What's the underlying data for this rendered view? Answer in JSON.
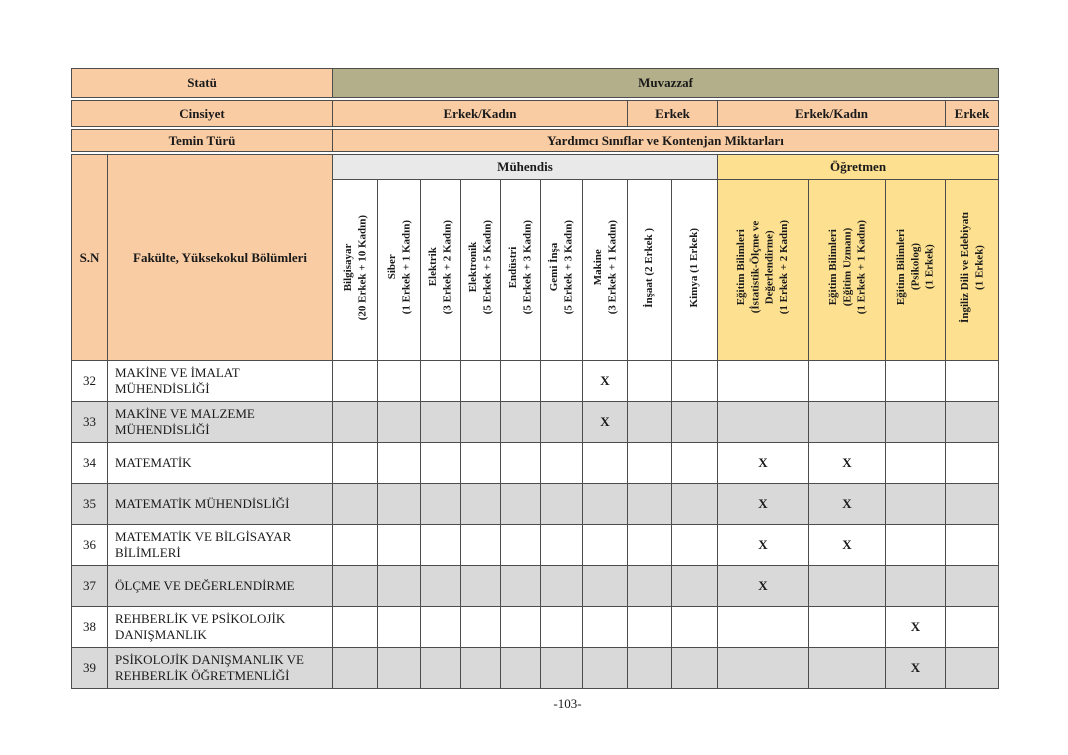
{
  "page": {
    "footer": "-103-"
  },
  "colors": {
    "peach_header": "#f9cca4",
    "olive_header": "#b4af8b",
    "teacher_yellow": "#fde191",
    "engineer_gray": "#e9e9e9",
    "alt_row_gray": "#d9d9d9",
    "border": "#4d4d4d"
  },
  "header_rows": {
    "statu": {
      "label": "Statü",
      "value": "Muvazzaf"
    },
    "cinsiyet": {
      "label": "Cinsiyet",
      "values": [
        "Erkek/Kadın",
        "Erkek",
        "Erkek/Kadın",
        "Erkek"
      ]
    },
    "temin": {
      "label": "Temin Türü",
      "value": "Yardımcı Sınıflar ve Kontenjan Miktarları"
    }
  },
  "table": {
    "sn_header": "S.N",
    "fakulte_header": "Fakülte, Yüksekokul Bölümleri",
    "groups": [
      {
        "label": "Mühendis",
        "span": 9
      },
      {
        "label": "Öğretmen",
        "span": 4
      }
    ],
    "columns": [
      {
        "id": "bilgisayar",
        "group": "muhendis",
        "label": "Bilgisayar\n(20 Erkek + 10 Kadın)"
      },
      {
        "id": "siber",
        "group": "muhendis",
        "label": "Siber\n(1 Erkek + 1 Kadın)"
      },
      {
        "id": "elektrik",
        "group": "muhendis",
        "label": "Elektrik\n(3 Erkek + 2 Kadın)"
      },
      {
        "id": "elektronik",
        "group": "muhendis",
        "label": "Elektronik\n(5 Erkek + 5 Kadın)"
      },
      {
        "id": "endustri",
        "group": "muhendis",
        "label": "Endüstri\n(5 Erkek + 3 Kadın)"
      },
      {
        "id": "gemi-insa",
        "group": "muhendis",
        "label": "Gemi İnşa\n(5 Erkek + 3 Kadın)"
      },
      {
        "id": "makine",
        "group": "muhendis",
        "label": "Makine\n(3 Erkek + 1 Kadın)"
      },
      {
        "id": "insaat",
        "group": "muhendis",
        "label": "İnşaat (2 Erkek )"
      },
      {
        "id": "kimya",
        "group": "muhendis",
        "label": "Kimya (1 Erkek)"
      },
      {
        "id": "eb-istatistik",
        "group": "ogretmen",
        "label": "Eğitim Bilimleri\n(İstatistik-Ölçme ve\nDeğerlendirme)\n(1 Erkek + 2 Kadın)"
      },
      {
        "id": "eb-uzman",
        "group": "ogretmen",
        "label": "Eğitim Bilimleri\n(Eğitim Uzmanı)\n(1 Erkek + 1 Kadın)"
      },
      {
        "id": "eb-psikolog",
        "group": "ogretmen",
        "label": "Eğitim Bilimleri\n(Psikolog)\n(1 Erkek)"
      },
      {
        "id": "ingiliz-dili",
        "group": "ogretmen",
        "label": "İngiliz Dili ve Edebiyatı\n(1 Erkek)"
      }
    ],
    "rows": [
      {
        "sn": "32",
        "name": "MAKİNE VE İMALAT MÜHENDİSLİĞİ",
        "marks": {
          "6": "X"
        }
      },
      {
        "sn": "33",
        "name": "MAKİNE VE MALZEME MÜHENDİSLİĞİ",
        "marks": {
          "6": "X"
        }
      },
      {
        "sn": "34",
        "name": "MATEMATİK",
        "marks": {
          "9": "X",
          "10": "X"
        }
      },
      {
        "sn": "35",
        "name": "MATEMATİK MÜHENDİSLİĞİ",
        "marks": {
          "9": "X",
          "10": "X"
        }
      },
      {
        "sn": "36",
        "name": "MATEMATİK VE BİLGİSAYAR BİLİMLERİ",
        "marks": {
          "9": "X",
          "10": "X"
        }
      },
      {
        "sn": "37",
        "name": "ÖLÇME VE DEĞERLENDİRME",
        "marks": {
          "9": "X"
        }
      },
      {
        "sn": "38",
        "name": "REHBERLİK VE PSİKOLOJİK DANIŞMANLIK",
        "marks": {
          "11": "X"
        }
      },
      {
        "sn": "39",
        "name": "PSİKOLOJİK DANIŞMANLIK VE REHBERLİK ÖĞRETMENLİĞİ",
        "marks": {
          "11": "X"
        }
      }
    ]
  }
}
